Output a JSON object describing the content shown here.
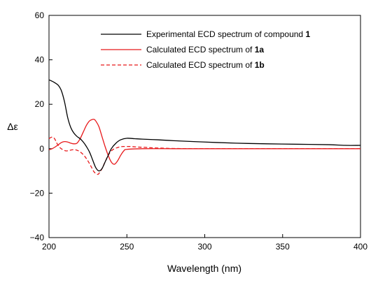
{
  "chart_data": {
    "type": "line",
    "xlabel": "Wavelength (nm)",
    "ylabel": "Δε",
    "xlim": [
      200,
      400
    ],
    "ylim": [
      -40,
      60
    ],
    "xticks": [
      "200",
      "250",
      "300",
      "350",
      "400"
    ],
    "yticks": [
      "−40",
      "−20",
      "0",
      "20",
      "40",
      "60"
    ],
    "grid": false,
    "legend_position": "top-right",
    "series": [
      {
        "name": "Experimental ECD spectrum of compound ",
        "name_bold": "1",
        "color": "#000000",
        "dash": "solid",
        "x": [
          200,
          203,
          206,
          208,
          210,
          212,
          214,
          216,
          218,
          220,
          222,
          224,
          226,
          228,
          230,
          232,
          234,
          236,
          238,
          240,
          243,
          246,
          250,
          255,
          260,
          270,
          280,
          300,
          320,
          340,
          360,
          380,
          390,
          400
        ],
        "y": [
          31,
          30,
          28.5,
          26,
          21,
          14,
          9.5,
          7,
          5.5,
          4.5,
          3,
          1,
          -1.5,
          -5,
          -8.5,
          -10,
          -9,
          -6,
          -3,
          0,
          2.5,
          4,
          4.7,
          4.5,
          4.3,
          4.0,
          3.6,
          3.0,
          2.5,
          2.2,
          2.0,
          1.8,
          1.5,
          1.5
        ]
      },
      {
        "name": "Calculated ECD spectrum of ",
        "name_bold": "1a",
        "color": "#e8191b",
        "dash": "solid",
        "x": [
          200,
          202,
          204,
          206,
          208,
          210,
          212,
          214,
          216,
          218,
          220,
          222,
          224,
          226,
          228,
          229,
          230,
          232,
          234,
          236,
          238,
          240,
          242,
          244,
          246,
          248,
          250,
          260,
          280,
          300,
          350,
          400
        ],
        "y": [
          -0.5,
          0,
          0.8,
          1.8,
          2.8,
          3.2,
          3.0,
          2.5,
          2.2,
          2.5,
          4.5,
          7.5,
          10.5,
          12.5,
          13.2,
          13.2,
          12.5,
          10,
          5.5,
          1,
          -3,
          -6,
          -7,
          -5.5,
          -3,
          -1,
          -0.3,
          0,
          0,
          0,
          0,
          0
        ]
      },
      {
        "name": "Calculated ECD spectrum of ",
        "name_bold": "1b",
        "color": "#e8191b",
        "dash": "dashed",
        "x": [
          200,
          201,
          202,
          203,
          204,
          205,
          207,
          209,
          211,
          213,
          215,
          217,
          219,
          221,
          223,
          225,
          227,
          229,
          231,
          232,
          234,
          236,
          238,
          240,
          242,
          244,
          246,
          248,
          250,
          252,
          254,
          258,
          262,
          266,
          270,
          275,
          280,
          300,
          350,
          400
        ],
        "y": [
          4.5,
          5.0,
          5.2,
          5.0,
          4.0,
          2.5,
          0.5,
          -0.5,
          -1.0,
          -0.8,
          -0.5,
          -0.5,
          -1.0,
          -2.0,
          -3.5,
          -5.5,
          -8.0,
          -10.5,
          -11.5,
          -11.2,
          -9.0,
          -6.0,
          -3.0,
          -1.0,
          0.0,
          0.5,
          0.9,
          1.0,
          1.0,
          1.0,
          0.9,
          0.7,
          0.6,
          0.4,
          0.3,
          0.2,
          0.1,
          0,
          0,
          0
        ]
      }
    ]
  }
}
